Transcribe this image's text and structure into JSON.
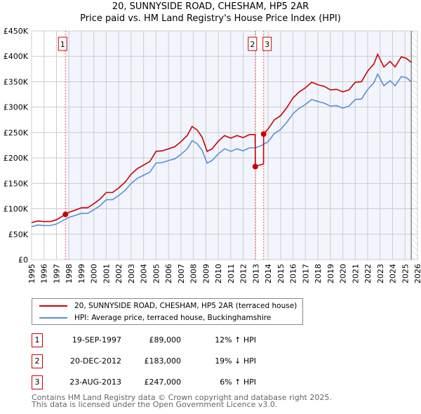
{
  "chart_data": {
    "type": "line",
    "title": "20, SUNNYSIDE ROAD, CHESHAM, HP5 2AR",
    "subtitle": "Price paid vs. HM Land Registry's House Price Index (HPI)",
    "xlim": [
      1995,
      2026
    ],
    "ylim": [
      0,
      450000
    ],
    "x_ticks": [
      "1995",
      "1996",
      "1997",
      "1998",
      "1999",
      "2000",
      "2001",
      "2002",
      "2003",
      "2004",
      "2005",
      "2006",
      "2007",
      "2008",
      "2009",
      "2010",
      "2011",
      "2012",
      "2013",
      "2014",
      "2015",
      "2016",
      "2017",
      "2018",
      "2019",
      "2020",
      "2021",
      "2022",
      "2023",
      "2024",
      "2025",
      "2026"
    ],
    "y_ticks": [
      {
        "v": 0,
        "label": "£0"
      },
      {
        "v": 50000,
        "label": "£50K"
      },
      {
        "v": 100000,
        "label": "£100K"
      },
      {
        "v": 150000,
        "label": "£150K"
      },
      {
        "v": 200000,
        "label": "£200K"
      },
      {
        "v": 250000,
        "label": "£250K"
      },
      {
        "v": 300000,
        "label": "£300K"
      },
      {
        "v": 350000,
        "label": "£350K"
      },
      {
        "v": 400000,
        "label": "£400K"
      },
      {
        "v": 450000,
        "label": "£450K"
      }
    ],
    "grid": true,
    "data_end": 2025.5,
    "series": [
      {
        "name": "20, SUNNYSIDE ROAD, CHESHAM, HP5 2AR (terraced house)",
        "color": "#cc0000",
        "x": [
          1995,
          1995.5,
          1996,
          1996.5,
          1997,
          1997.72,
          1998,
          1998.5,
          1999,
          1999.5,
          2000,
          2000.5,
          2001,
          2001.5,
          2002,
          2002.5,
          2003,
          2003.5,
          2004,
          2004.5,
          2005,
          2005.5,
          2006,
          2006.5,
          2007,
          2007.5,
          2007.9,
          2008.3,
          2008.7,
          2009.1,
          2009.5,
          2010,
          2010.5,
          2011,
          2011.5,
          2012,
          2012.5,
          2012.96,
          2012.97,
          2013.3,
          2013.63,
          2013.64,
          2014,
          2014.5,
          2015,
          2015.5,
          2016,
          2016.5,
          2017,
          2017.5,
          2018,
          2018.5,
          2019,
          2019.5,
          2020,
          2020.5,
          2021,
          2021.5,
          2022,
          2022.5,
          2022.8,
          2023.3,
          2023.8,
          2024.2,
          2024.7,
          2025.1,
          2025.5
        ],
        "y": [
          72800,
          76000,
          75000,
          75000,
          78400,
          89000,
          93000,
          97400,
          102000,
          102000,
          110000,
          119000,
          132000,
          132000,
          141000,
          152000,
          168000,
          179000,
          186000,
          193000,
          213000,
          214000,
          218000,
          222000,
          232000,
          244000,
          262000,
          255000,
          241000,
          213000,
          218000,
          233000,
          244000,
          239000,
          244000,
          240000,
          246000,
          246000,
          183000,
          186000,
          188000,
          247000,
          257000,
          275000,
          283000,
          299000,
          318000,
          330000,
          338000,
          349000,
          344000,
          341000,
          334000,
          335000,
          330000,
          334000,
          349000,
          350000,
          371000,
          385000,
          404000,
          379000,
          390000,
          379000,
          399000,
          396000,
          388000
        ]
      },
      {
        "name": "HPI: Average price, terraced house, Buckinghamshire",
        "color": "#5b8fd4",
        "x": [
          1995,
          1995.5,
          1996,
          1996.5,
          1997,
          1997.72,
          1998,
          1998.5,
          1999,
          1999.5,
          2000,
          2000.5,
          2001,
          2001.5,
          2002,
          2002.5,
          2003,
          2003.5,
          2004,
          2004.5,
          2005,
          2005.5,
          2006,
          2006.5,
          2007,
          2007.5,
          2007.9,
          2008.3,
          2008.7,
          2009.1,
          2009.5,
          2010,
          2010.5,
          2011,
          2011.5,
          2012,
          2012.5,
          2013,
          2013.5,
          2014,
          2014.5,
          2015,
          2015.5,
          2016,
          2016.5,
          2017,
          2017.5,
          2018,
          2018.5,
          2019,
          2019.5,
          2020,
          2020.5,
          2021,
          2021.5,
          2022,
          2022.5,
          2022.8,
          2023.3,
          2023.8,
          2024.2,
          2024.7,
          2025.1,
          2025.5
        ],
        "y": [
          65000,
          68000,
          67000,
          67000,
          70000,
          79500,
          83000,
          87000,
          91000,
          91000,
          98000,
          106000,
          118000,
          118000,
          126000,
          136000,
          150000,
          160000,
          166000,
          172000,
          190000,
          191000,
          195000,
          198000,
          207000,
          218000,
          234000,
          228000,
          215000,
          190000,
          195000,
          208000,
          218000,
          213000,
          218000,
          214000,
          220000,
          220000,
          225000,
          232000,
          248000,
          256000,
          270000,
          287000,
          298000,
          305000,
          315000,
          311000,
          308000,
          302000,
          303000,
          298000,
          302000,
          315000,
          316000,
          335000,
          348000,
          365000,
          342000,
          352000,
          342000,
          360000,
          358000,
          350000
        ]
      }
    ],
    "sales": [
      {
        "id": "1",
        "x": 1997.72,
        "y": 89000,
        "date": "19-SEP-1997",
        "price": "£89,000",
        "hpi": "12% ↑ HPI"
      },
      {
        "id": "2",
        "x": 2012.97,
        "y": 183000,
        "date": "20-DEC-2012",
        "price": "£183,000",
        "hpi": "19% ↓ HPI"
      },
      {
        "id": "3",
        "x": 2013.64,
        "y": 247000,
        "date": "23-AUG-2013",
        "price": "£247,000",
        "hpi": "6% ↑ HPI"
      }
    ],
    "legend_position": "below"
  },
  "footer": {
    "line1": "Contains HM Land Registry data © Crown copyright and database right 2025.",
    "line2": "This data is licensed under the Open Government Licence v3.0."
  }
}
